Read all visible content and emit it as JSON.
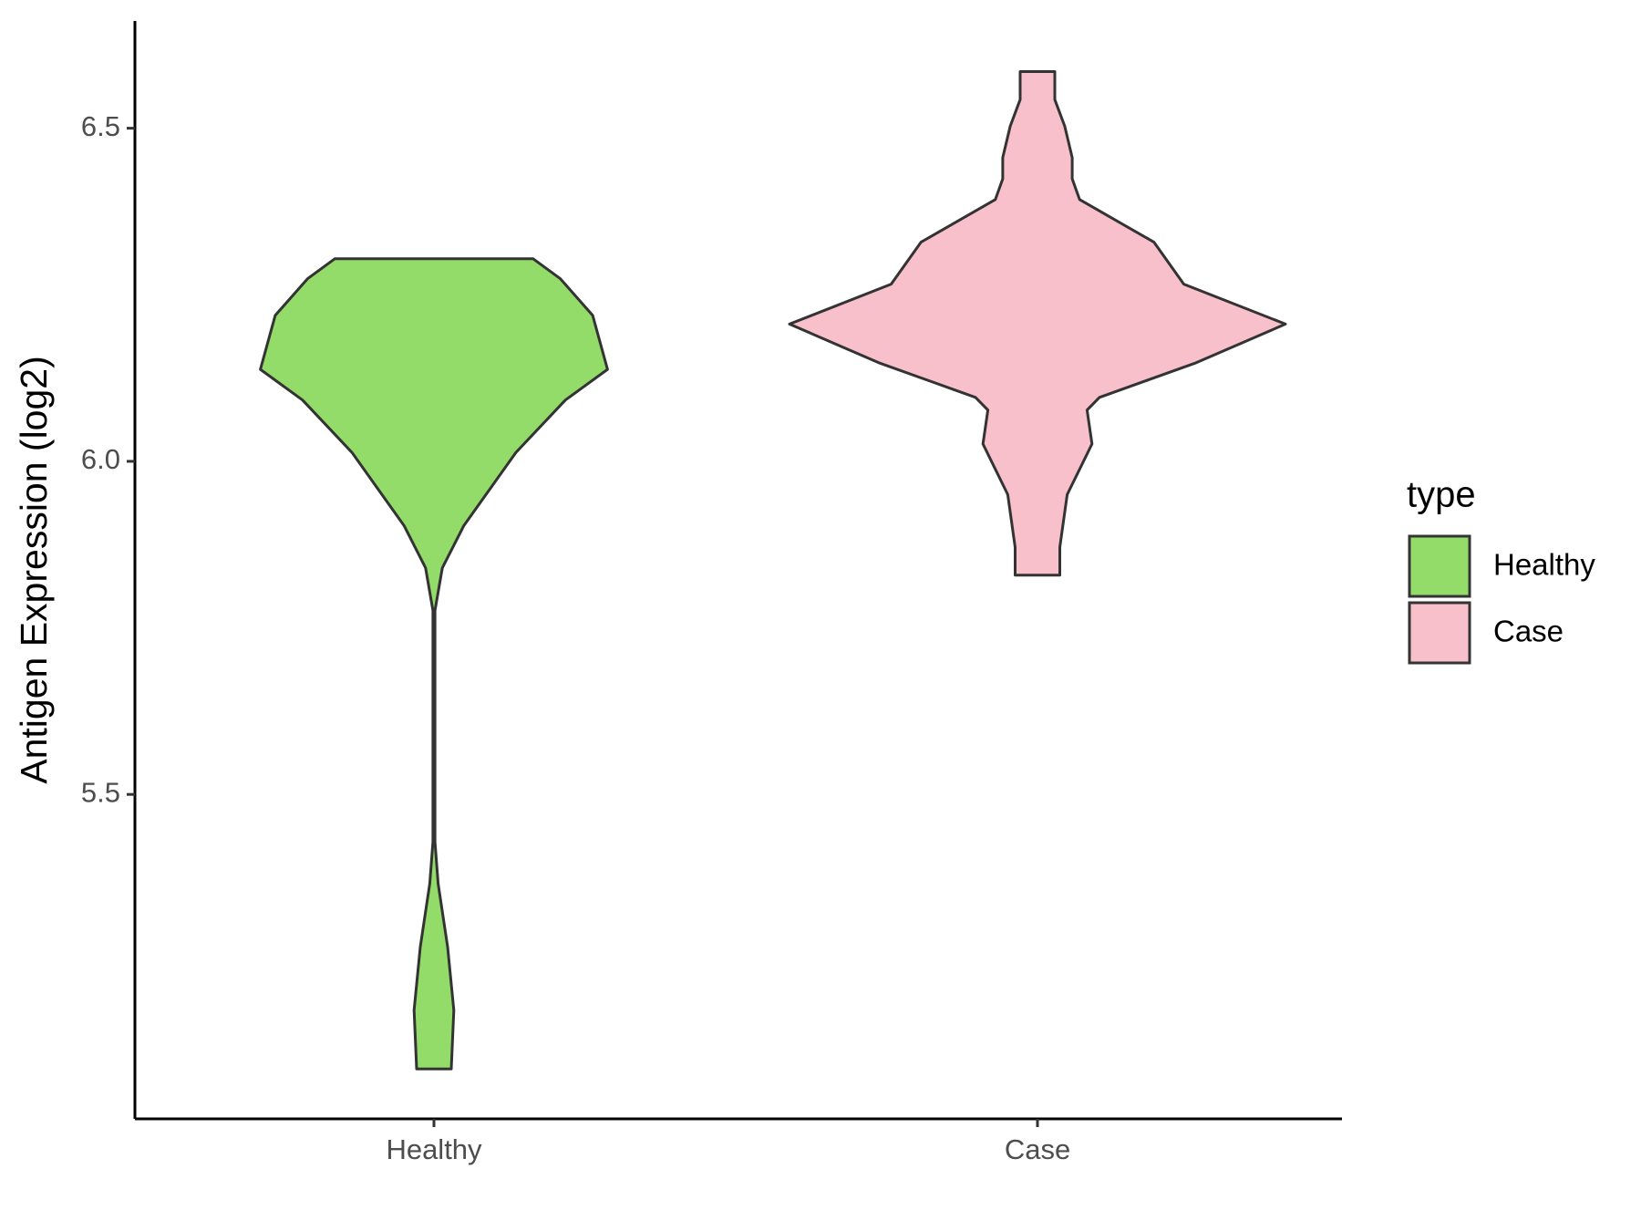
{
  "chart_data": {
    "type": "violin",
    "y_label": "Antigen Expression (log2)",
    "categories": [
      "Healthy",
      "Case"
    ],
    "legend_title": "type",
    "legend": "right",
    "ylim": [
      5.013,
      6.661
    ],
    "yticks": [
      5.5,
      {
        "value": 6,
        "label": "6.0"
      },
      6.5
    ],
    "series": [
      {
        "name": "Healthy",
        "color": "#93dc6a",
        "y": [
          5.088,
          5.176,
          5.271,
          5.366,
          5.429,
          5.776,
          5.84,
          5.903,
          6.013,
          6.092,
          6.138,
          6.219,
          6.274,
          6.304
        ],
        "density": [
          0.07,
          0.08,
          0.055,
          0.017,
          0.004,
          0.004,
          0.034,
          0.12,
          0.33,
          0.53,
          0.7,
          0.64,
          0.51,
          0.4
        ]
      },
      {
        "name": "Case",
        "color": "#f7c0cb",
        "y": [
          5.829,
          5.871,
          5.95,
          6.026,
          6.077,
          6.096,
          6.148,
          6.206,
          6.266,
          6.329,
          6.393,
          6.424,
          6.456,
          6.503,
          6.543,
          6.585
        ],
        "density": [
          0.09,
          0.09,
          0.12,
          0.22,
          0.2,
          0.25,
          0.64,
          1.0,
          0.59,
          0.47,
          0.17,
          0.14,
          0.14,
          0.11,
          0.07,
          0.07
        ]
      }
    ]
  }
}
